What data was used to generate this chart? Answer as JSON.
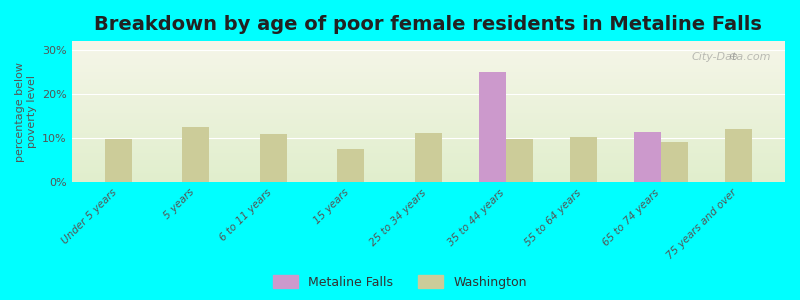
{
  "title": "Breakdown by age of poor female residents in Metaline Falls",
  "ylabel": "percentage below\npoverty level",
  "background_color": "#00FFFF",
  "plot_bg_top": "#f5f5e8",
  "plot_bg_bottom": "#e8f0d0",
  "categories": [
    "Under 5 years",
    "5 years",
    "6 to 11 years",
    "15 years",
    "25 to 34 years",
    "35 to 44 years",
    "55 to 64 years",
    "65 to 74 years",
    "75 years and over"
  ],
  "metaline_falls": [
    0,
    0,
    0,
    0,
    0,
    25,
    0,
    11.5,
    0
  ],
  "washington": [
    9.8,
    12.5,
    11.0,
    7.5,
    11.2,
    9.8,
    10.2,
    9.2,
    12.2
  ],
  "metaline_color": "#cc99cc",
  "washington_color": "#cccc99",
  "ylim": [
    0,
    32
  ],
  "yticks": [
    0,
    10,
    20,
    30
  ],
  "ytick_labels": [
    "0%",
    "10%",
    "20%",
    "30%"
  ],
  "bar_width": 0.35,
  "title_fontsize": 14,
  "watermark": "City-Data.com"
}
